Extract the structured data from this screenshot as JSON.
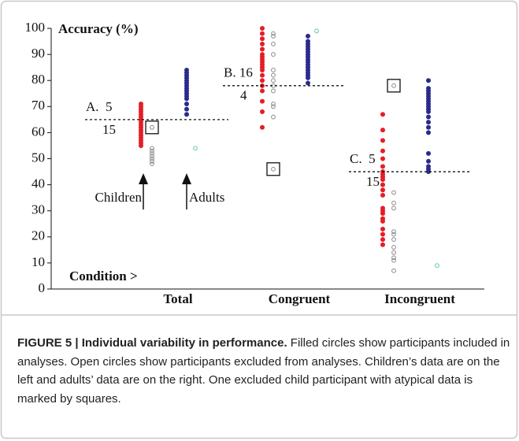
{
  "chart_data": {
    "type": "strip",
    "y_label": "Accuracy (%)",
    "x_label": "Condition >",
    "categories": [
      "Total",
      "Congruent",
      "Incongruent"
    ],
    "ylim": [
      0,
      100
    ],
    "yticks": [
      0,
      10,
      20,
      30,
      40,
      50,
      60,
      70,
      80,
      90,
      100
    ],
    "series": [
      {
        "color": "#e41e26",
        "filled": true,
        "values": [
          [
            71,
            70,
            69,
            68,
            67,
            66,
            65,
            64,
            63,
            62,
            61,
            60,
            59,
            58,
            57,
            56,
            55
          ],
          [
            100,
            98,
            96,
            94,
            92,
            90,
            89,
            88,
            87,
            86,
            85,
            84,
            82,
            80,
            78,
            76,
            72,
            68,
            62
          ],
          [
            67,
            61,
            57,
            53,
            50,
            47,
            45,
            44,
            43,
            42,
            40,
            38,
            36,
            31,
            30,
            29,
            27,
            26,
            23,
            21,
            19,
            17
          ]
        ]
      },
      {
        "color": "#8a8a8a",
        "filled": false,
        "values": [
          [
            62,
            54,
            53,
            52,
            51,
            50,
            49,
            48
          ],
          [
            98,
            97,
            94,
            90,
            84,
            82,
            80,
            78,
            76,
            71,
            70,
            66,
            46
          ],
          [
            78,
            37,
            33,
            31,
            22,
            21,
            19,
            16,
            14,
            12,
            11,
            7
          ]
        ]
      },
      {
        "color": "#2b2a8c",
        "filled": true,
        "values": [
          [
            84,
            83,
            82,
            81,
            80,
            79,
            78,
            77,
            76,
            75,
            74,
            73,
            71,
            69,
            67
          ],
          [
            97,
            95,
            94,
            93,
            92,
            91,
            90,
            89,
            88,
            87,
            86,
            85,
            84,
            83,
            82,
            81,
            79
          ],
          [
            80,
            77,
            76,
            75,
            74,
            73,
            72,
            71,
            70,
            69,
            68,
            66,
            64,
            62,
            60,
            52,
            49,
            47,
            46,
            45
          ]
        ]
      },
      {
        "color": "#5cc9b0",
        "filled": false,
        "values": [
          [
            54
          ],
          [
            99
          ],
          [
            9
          ]
        ]
      }
    ],
    "squares": [
      62,
      46,
      78
    ],
    "dividers": [
      {
        "value": 65,
        "label_top": "A.  5",
        "label_bottom": "15"
      },
      {
        "value": 78,
        "label_top": "B. 16",
        "label_bottom": "4"
      },
      {
        "value": 45,
        "label_top": "C.  5",
        "label_bottom": "15"
      }
    ],
    "arrows": [
      "Children",
      "Adults"
    ]
  },
  "caption": {
    "title": "FIGURE 5 | Individual variability in performance.",
    "text": "Filled circles show participants included in analyses. Open circles show participants excluded from analyses. Children’s data are on the left and adults’ data are on the right. One excluded child participant with atypical data is marked by squares."
  }
}
